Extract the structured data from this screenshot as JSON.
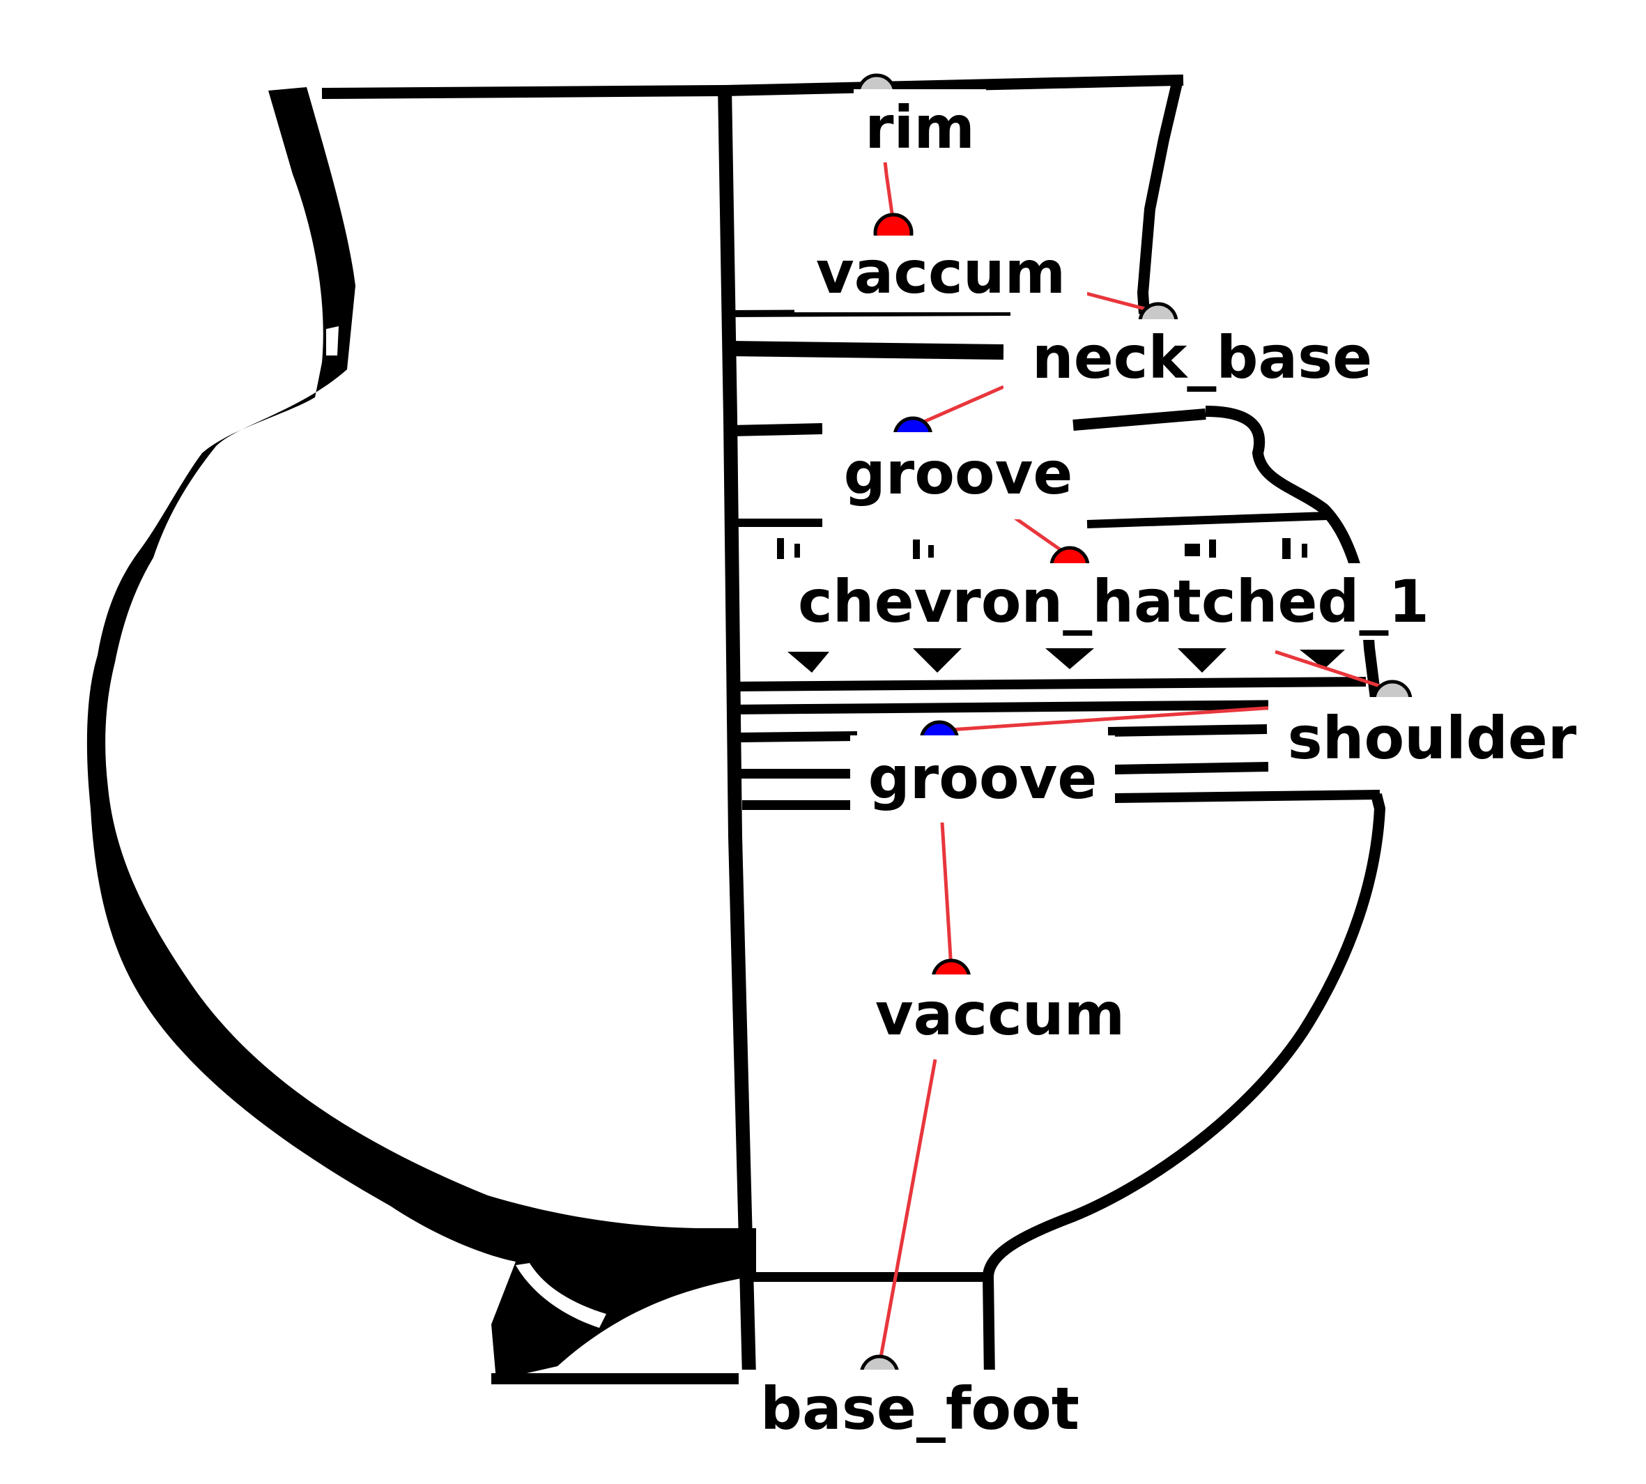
{
  "colors": {
    "ink": "#000000",
    "paper": "#ffffff",
    "leader_line": "#e8363c",
    "dot_landmark": "#c9c9c9",
    "dot_vaccum": "#ff0000",
    "dot_groove": "#0000ff"
  },
  "annotations": [
    {
      "id": "rim",
      "label": "rim",
      "kind": "landmark"
    },
    {
      "id": "vaccum-upper",
      "label": "vaccum",
      "kind": "vaccum"
    },
    {
      "id": "neck-base",
      "label": "neck_base",
      "kind": "landmark"
    },
    {
      "id": "groove-upper",
      "label": "groove",
      "kind": "groove"
    },
    {
      "id": "chevron-hatched-1",
      "label": "chevron_hatched_1",
      "kind": "vaccum"
    },
    {
      "id": "shoulder",
      "label": "shoulder",
      "kind": "landmark"
    },
    {
      "id": "groove-lower",
      "label": "groove",
      "kind": "groove"
    },
    {
      "id": "vaccum-lower",
      "label": "vaccum",
      "kind": "vaccum"
    },
    {
      "id": "base-foot",
      "label": "base_foot",
      "kind": "landmark"
    }
  ]
}
